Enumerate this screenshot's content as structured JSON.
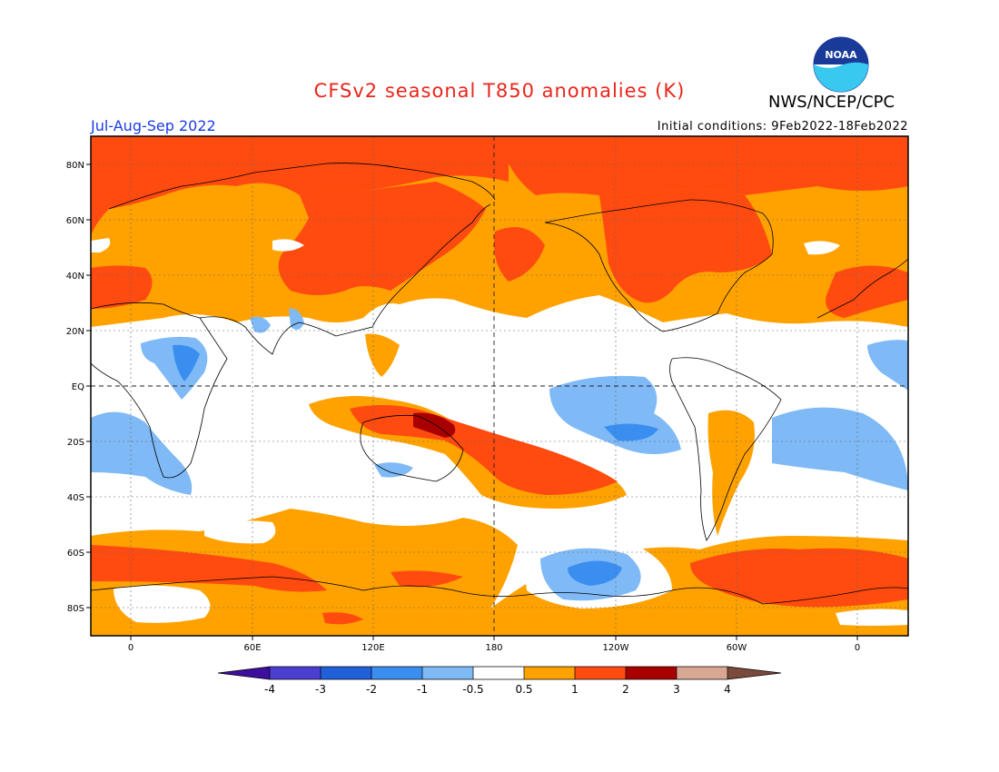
{
  "header": {
    "title": "CFSv2 seasonal T850 anomalies (K)",
    "agency": "NWS/NCEP/CPC",
    "season": "Jul-Aug-Sep 2022",
    "initial_conditions": "Initial conditions: 9Feb2022-18Feb2022",
    "logo_text": "NOAA"
  },
  "axes": {
    "lat_labels": [
      "80N",
      "60N",
      "40N",
      "20N",
      "EQ",
      "20S",
      "40S",
      "60S",
      "80S"
    ],
    "lon_labels": [
      "0",
      "60E",
      "120E",
      "180",
      "120W",
      "60W",
      "0"
    ]
  },
  "colorbar": {
    "labels": [
      "-4",
      "-3",
      "-2",
      "-1",
      "-0.5",
      "0.5",
      "1",
      "2",
      "3",
      "4"
    ],
    "colors": [
      "#3d0f9c",
      "#4a3fd0",
      "#2060d8",
      "#3a8ef0",
      "#7fbaf7",
      "#ffffff",
      "#ffa200",
      "#ff4a10",
      "#a80000",
      "#d9a895",
      "#7a4a3a"
    ]
  },
  "map_colors": {
    "ocean_neutral": "#ffffff",
    "warm_05_1": "#ffa200",
    "warm_1_2": "#ff4a10",
    "warm_2_3": "#a80000",
    "cool_05_1": "#7fbaf7",
    "cool_1_2": "#3a8ef0"
  }
}
